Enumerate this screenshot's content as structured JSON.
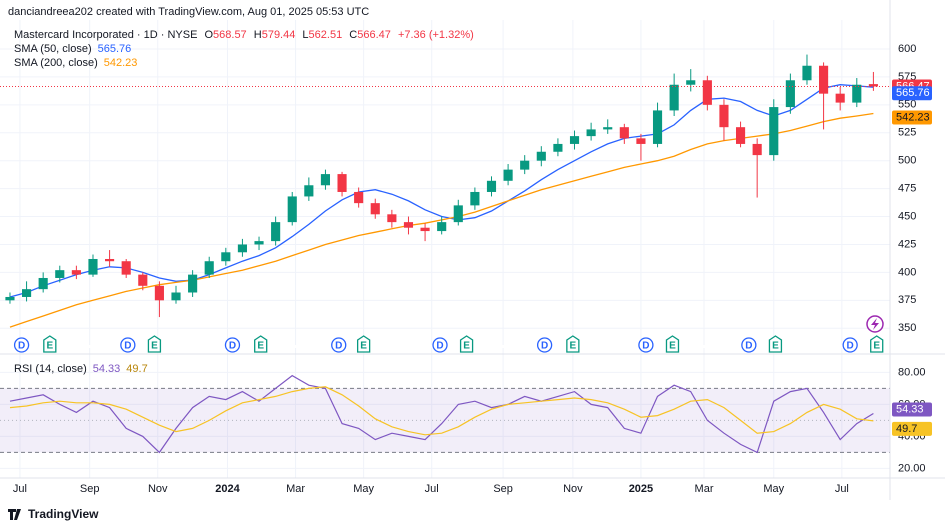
{
  "attribution": "danciandreea202 created with TradingView.com, Aug 01, 2025 05:53 UTC",
  "branding": "TradingView",
  "chart_data": [
    {
      "type": "candlestick",
      "title": "Mastercard Incorporated · 1D · NYSE",
      "ohlc_letters": [
        "O",
        "H",
        "L",
        "C"
      ],
      "change_label": "+7.36 (+1.32%)",
      "up_color": "#089981",
      "down_color": "#f23645",
      "open": [
        375,
        378,
        385,
        395,
        402,
        398,
        412,
        410,
        398,
        388,
        375,
        382,
        398,
        410,
        418,
        425,
        428,
        445,
        468,
        478,
        488,
        472,
        462,
        452,
        445,
        440,
        437,
        445,
        460,
        472,
        482,
        492,
        500,
        508,
        515,
        522,
        528,
        530,
        520,
        515,
        545,
        568,
        572,
        550,
        530,
        515,
        505,
        548,
        572,
        585,
        560,
        552,
        568.57
      ],
      "high": [
        382,
        392,
        400,
        406,
        406,
        416,
        420,
        412,
        400,
        392,
        388,
        402,
        414,
        422,
        430,
        432,
        450,
        472,
        485,
        492,
        490,
        476,
        466,
        456,
        450,
        444,
        450,
        465,
        476,
        486,
        497,
        505,
        513,
        520,
        527,
        534,
        537,
        533,
        524,
        552,
        578,
        582,
        576,
        555,
        535,
        520,
        555,
        578,
        595,
        588,
        566,
        574,
        579.44
      ],
      "low": [
        372,
        374,
        382,
        391,
        394,
        396,
        405,
        395,
        384,
        360,
        372,
        378,
        395,
        406,
        414,
        420,
        424,
        442,
        464,
        474,
        468,
        458,
        448,
        440,
        434,
        428,
        434,
        442,
        456,
        468,
        478,
        488,
        495,
        504,
        510,
        518,
        524,
        515,
        500,
        512,
        540,
        562,
        545,
        518,
        512,
        467,
        500,
        542,
        568,
        528,
        545,
        548,
        562.51
      ],
      "close": [
        378,
        385,
        395,
        402,
        398,
        412,
        410,
        398,
        388,
        375,
        382,
        398,
        410,
        418,
        425,
        428,
        445,
        468,
        478,
        488,
        472,
        462,
        452,
        445,
        440,
        437,
        445,
        460,
        472,
        482,
        492,
        500,
        508,
        515,
        522,
        528,
        530,
        520,
        515,
        545,
        568,
        572,
        550,
        530,
        515,
        505,
        548,
        572,
        585,
        560,
        552,
        568,
        566.47
      ],
      "series": [
        {
          "name": "SMA (50, close)",
          "color": "#2962ff",
          "values": [
            378,
            382,
            388,
            393,
            398,
            402,
            405,
            404,
            400,
            395,
            392,
            393,
            398,
            404,
            410,
            415,
            422,
            432,
            443,
            455,
            465,
            472,
            474,
            470,
            464,
            456,
            450,
            447,
            449,
            455,
            464,
            473,
            483,
            492,
            500,
            508,
            515,
            520,
            522,
            524,
            532,
            545,
            555,
            556,
            553,
            545,
            540,
            545,
            555,
            565,
            568,
            567,
            565.76
          ]
        },
        {
          "name": "SMA (200, close)",
          "color": "#ff9800",
          "values": [
            351,
            356,
            361,
            366,
            371,
            375,
            379,
            383,
            386,
            389,
            391,
            393,
            396,
            399,
            402,
            406,
            410,
            415,
            420,
            425,
            429,
            433,
            436,
            439,
            442,
            444,
            447,
            450,
            454,
            459,
            464,
            469,
            474,
            478,
            482,
            486,
            490,
            494,
            497,
            500,
            504,
            510,
            515,
            518,
            520,
            522,
            524,
            527,
            531,
            535,
            538,
            540,
            542.23
          ]
        }
      ],
      "xlim": [
        -0.6,
        53
      ],
      "ylim": [
        335,
        617
      ],
      "yticks": [
        350,
        375,
        400,
        425,
        450,
        475,
        500,
        525,
        550,
        575,
        600
      ],
      "grid": true,
      "y_axis_side": "right",
      "events": {
        "dividend_letter": "D",
        "earnings_letter": "E",
        "dividends": [
          0.7,
          7.1,
          13.4,
          19.8,
          25.9,
          32.2,
          38.3,
          44.5,
          50.6
        ],
        "earnings": [
          2.4,
          8.7,
          15.1,
          21.3,
          27.5,
          33.9,
          39.9,
          46.1,
          52.2
        ],
        "dividend_color": "#2962ff",
        "earnings_color": "#089981"
      }
    },
    {
      "type": "line",
      "title": "RSI (14, close)",
      "series": [
        {
          "color": "#7e57c2",
          "values": [
            62,
            64,
            66,
            60,
            55,
            62,
            58,
            45,
            40,
            30,
            45,
            58,
            65,
            63,
            68,
            62,
            70,
            78,
            72,
            70,
            48,
            45,
            38,
            42,
            40,
            38,
            48,
            60,
            62,
            58,
            60,
            65,
            62,
            65,
            68,
            60,
            58,
            45,
            42,
            65,
            72,
            68,
            50,
            42,
            35,
            30,
            62,
            68,
            70,
            55,
            38,
            48,
            54.33
          ]
        },
        {
          "color": "#f7c325",
          "values": [
            58,
            59,
            61,
            62,
            61,
            61,
            60,
            57,
            52,
            47,
            43,
            45,
            50,
            56,
            61,
            63,
            65,
            68,
            70,
            71,
            66,
            59,
            51,
            46,
            43,
            41,
            42,
            46,
            52,
            57,
            60,
            61,
            62,
            63,
            64,
            63,
            61,
            57,
            52,
            53,
            57,
            62,
            63,
            58,
            50,
            42,
            43,
            48,
            55,
            60,
            57,
            51,
            49.7
          ]
        }
      ],
      "band": [
        30,
        70
      ],
      "midline": 50,
      "xlim": [
        -0.6,
        53
      ],
      "ylim": [
        14,
        89
      ],
      "yticks": [
        {
          "value": 20,
          "label": "20.00"
        },
        {
          "value": 40,
          "label": "40.00"
        },
        {
          "value": 60,
          "label": "60.00"
        },
        {
          "value": 80,
          "label": "80.00"
        }
      ],
      "xticks": [
        {
          "value": 0.6,
          "label": "Jul"
        },
        {
          "value": 4.8,
          "label": "Sep"
        },
        {
          "value": 8.9,
          "label": "Nov"
        },
        {
          "value": 13.1,
          "label": "2024"
        },
        {
          "value": 17.2,
          "label": "Mar"
        },
        {
          "value": 21.3,
          "label": "May"
        },
        {
          "value": 25.4,
          "label": "Jul"
        },
        {
          "value": 29.7,
          "label": "Sep"
        },
        {
          "value": 33.9,
          "label": "Nov"
        },
        {
          "value": 38.0,
          "label": "2025"
        },
        {
          "value": 41.8,
          "label": "Mar"
        },
        {
          "value": 46.0,
          "label": "May"
        },
        {
          "value": 50.1,
          "label": "Jul"
        }
      ],
      "grid": true,
      "y_axis_side": "right"
    }
  ]
}
